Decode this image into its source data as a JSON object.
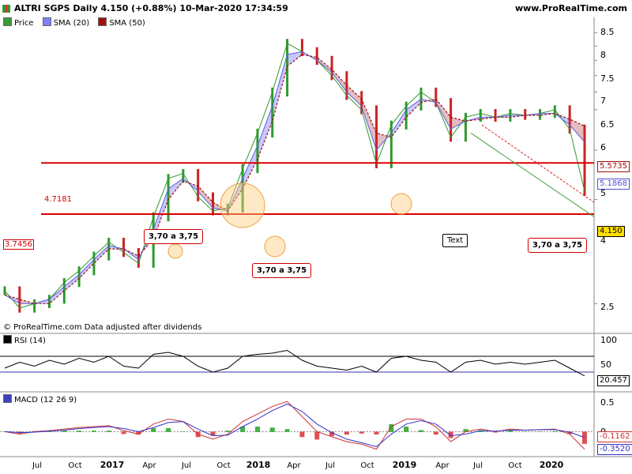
{
  "header": {
    "title": "ALTRI SGPS Daily 4.150 (+0.88%) 10-Mar-2020 17:34:59",
    "site": "www.ProRealTime.com"
  },
  "legend": [
    {
      "label": "Price",
      "color": "#3a9a3a"
    },
    {
      "label": "SMA (20)",
      "color": "#8080ff"
    },
    {
      "label": "SMA (50)",
      "color": "#a01010"
    }
  ],
  "watermark": "© ProRealTime.com  Data adjusted after dividends",
  "rsi_panel": {
    "label": "RSI (14)",
    "ticks": [
      "100",
      "50"
    ],
    "last_value": "20.457"
  },
  "macd_panel": {
    "label": "MACD (12 26 9)",
    "ticks": [
      "0.5",
      "0"
    ],
    "last_values": [
      "-0.1162",
      "-0.3520"
    ]
  },
  "price_axis": {
    "ticks": [
      "8.5",
      "8",
      "7.5",
      "7",
      "6.5",
      "6",
      "5",
      "4",
      "2.5"
    ]
  },
  "value_boxes": [
    {
      "text": "5.5735",
      "color": "#a01010"
    },
    {
      "text": "5.1868",
      "color": "#5050d0"
    },
    {
      "text": "4.150",
      "color": "#000000",
      "bg": "#ffe000"
    }
  ],
  "hline_labels": [
    "4.7181",
    "3.7456"
  ],
  "annotations": [
    "3,70 a 3,75",
    "3,70 a 3,75",
    "3,70 a 3,75"
  ],
  "text_box": "Text",
  "x_axis": {
    "labels": [
      "Jul",
      "Oct",
      "2017",
      "Apr",
      "Jul",
      "Oct",
      "2018",
      "Apr",
      "Jul",
      "Oct",
      "2019",
      "Apr",
      "Jul",
      "Oct",
      "2020"
    ],
    "year_labels": [
      "2017",
      "2018",
      "2019",
      "2020"
    ]
  },
  "chart_data": {
    "type": "line",
    "title": "ALTRI SGPS Daily 4.150 (+0.88%) 10-Mar-2020 17:34:59",
    "xlabel": "",
    "ylabel": "",
    "x": [
      "2016-05",
      "2016-07",
      "2016-09",
      "2016-11",
      "2017-01",
      "2017-03",
      "2017-05",
      "2017-06",
      "2017-08",
      "2017-09",
      "2017-10",
      "2017-11",
      "2017-12",
      "2018-01",
      "2018-02",
      "2018-03",
      "2018-04",
      "2018-05",
      "2018-06",
      "2018-07",
      "2018-08",
      "2018-09",
      "2018-10",
      "2018-11",
      "2018-12",
      "2019-01",
      "2019-02",
      "2019-03",
      "2019-04",
      "2019-05",
      "2019-06",
      "2019-07",
      "2019-08",
      "2019-09",
      "2019-10",
      "2019-11",
      "2019-12",
      "2020-01",
      "2020-02",
      "2020-03"
    ],
    "series": [
      {
        "name": "Price",
        "values": [
          2.65,
          2.45,
          2.5,
          2.55,
          2.75,
          2.9,
          3.1,
          3.3,
          3.15,
          3.0,
          3.7,
          4.4,
          4.5,
          4.05,
          3.8,
          3.85,
          4.6,
          5.4,
          6.5,
          8.1,
          7.8,
          7.5,
          7.0,
          6.4,
          6.0,
          4.7,
          5.6,
          6.1,
          6.5,
          6.2,
          5.3,
          5.8,
          5.9,
          5.8,
          5.9,
          5.85,
          5.9,
          6.0,
          5.5,
          4.15
        ]
      },
      {
        "name": "SMA (20)",
        "values": [
          2.6,
          2.5,
          2.5,
          2.55,
          2.7,
          2.85,
          3.05,
          3.25,
          3.2,
          3.05,
          3.5,
          4.2,
          4.4,
          4.15,
          3.85,
          3.8,
          4.4,
          5.1,
          6.1,
          7.7,
          7.8,
          7.5,
          7.1,
          6.5,
          6.1,
          5.0,
          5.4,
          6.0,
          6.3,
          6.2,
          5.5,
          5.7,
          5.8,
          5.8,
          5.85,
          5.85,
          5.9,
          5.9,
          5.6,
          5.1868
        ]
      },
      {
        "name": "SMA (50)",
        "values": [
          2.6,
          2.55,
          2.5,
          2.5,
          2.65,
          2.8,
          3.0,
          3.2,
          3.2,
          3.1,
          3.35,
          4.0,
          4.35,
          4.25,
          3.95,
          3.8,
          4.2,
          4.8,
          5.7,
          7.3,
          7.7,
          7.6,
          7.2,
          6.7,
          6.3,
          5.4,
          5.3,
          5.8,
          6.2,
          6.3,
          5.8,
          5.7,
          5.75,
          5.8,
          5.8,
          5.85,
          5.85,
          5.9,
          5.75,
          5.5735
        ]
      }
    ],
    "hlines": [
      4.7181,
      3.7456
    ],
    "y_ticks": [
      2.5,
      4,
      5,
      6,
      6.5,
      7,
      7.5,
      8,
      8.5
    ],
    "log_scale": true,
    "grid": false,
    "rsi": {
      "name": "RSI (14)",
      "range": [
        0,
        100
      ],
      "levels": [
        70,
        30
      ],
      "values": [
        40,
        55,
        45,
        60,
        50,
        65,
        55,
        70,
        45,
        40,
        75,
        80,
        70,
        45,
        30,
        40,
        70,
        75,
        78,
        85,
        60,
        45,
        40,
        35,
        45,
        30,
        65,
        70,
        60,
        55,
        30,
        55,
        60,
        50,
        55,
        50,
        55,
        60,
        40,
        20.457
      ]
    },
    "macd": {
      "name": "MACD (12 26 9)",
      "values": [
        0.0,
        -0.05,
        0.0,
        0.02,
        0.05,
        0.08,
        0.1,
        0.12,
        0.02,
        -0.05,
        0.15,
        0.25,
        0.2,
        -0.05,
        -0.15,
        -0.05,
        0.2,
        0.35,
        0.5,
        0.6,
        0.3,
        0.0,
        -0.1,
        -0.2,
        -0.25,
        -0.35,
        0.1,
        0.25,
        0.25,
        0.1,
        -0.2,
        0.0,
        0.05,
        0.0,
        0.05,
        0.03,
        0.04,
        0.05,
        -0.05,
        -0.352
      ],
      "signal": [
        0.0,
        -0.02,
        -0.01,
        0.01,
        0.03,
        0.06,
        0.08,
        0.1,
        0.06,
        0.0,
        0.08,
        0.18,
        0.2,
        0.05,
        -0.08,
        -0.07,
        0.1,
        0.25,
        0.42,
        0.55,
        0.4,
        0.15,
        -0.02,
        -0.15,
        -0.22,
        -0.3,
        -0.05,
        0.15,
        0.22,
        0.15,
        -0.08,
        -0.05,
        0.02,
        0.01,
        0.03,
        0.03,
        0.04,
        0.04,
        -0.01,
        -0.1162
      ]
    }
  }
}
